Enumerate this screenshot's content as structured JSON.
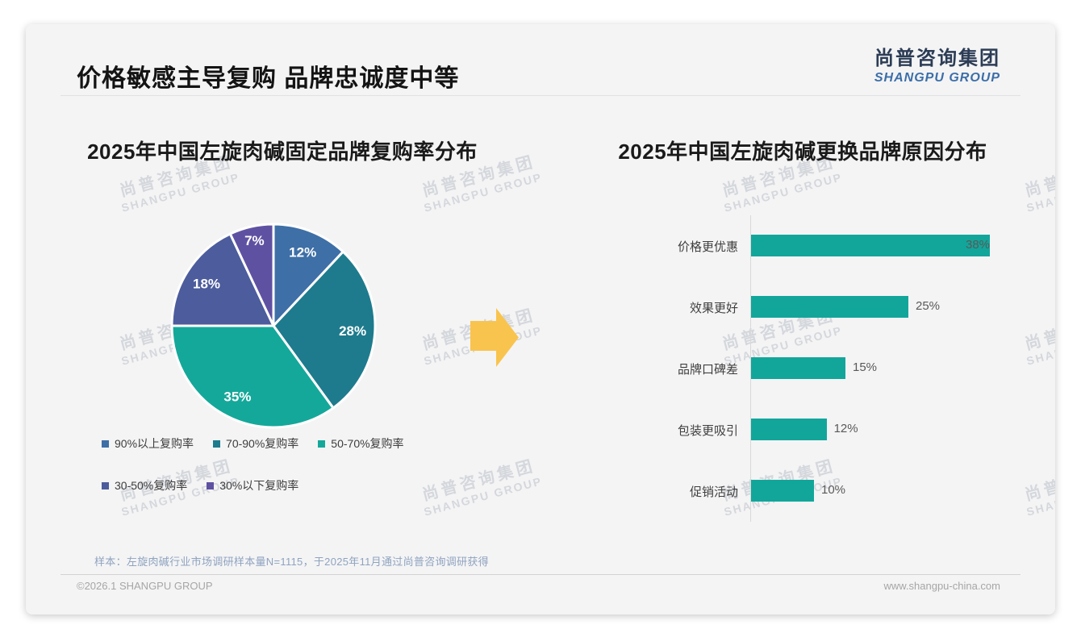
{
  "slide": {
    "title": "价格敏感主导复购 品牌忠诚度中等",
    "logo": {
      "cn": "尚普咨询集团",
      "en": "SHANGPU GROUP"
    },
    "watermark": {
      "line1": "尚普咨询集团",
      "line2": "SHANGPU GROUP"
    },
    "note": "样本：左旋肉碱行业市场调研样本量N=1115，于2025年11月通过尚普咨询调研获得",
    "footer_left": "©2026.1 SHANGPU GROUP",
    "footer_right": "www.shangpu-china.com"
  },
  "colors": {
    "teal_accent": "#12a69b",
    "arrow_yellow": "#f9c44e",
    "logo_navy": "#2c3c55",
    "logo_blue": "#3b6ea8"
  },
  "chart_data": [
    {
      "type": "pie",
      "title": "2025年中国左旋肉碱固定品牌复购率分布",
      "labels": [
        "90%以上复购率",
        "70-90%复购率",
        "50-70%复购率",
        "30-50%复购率",
        "30%以下复购率"
      ],
      "values": [
        12,
        28,
        35,
        18,
        7
      ],
      "data_labels": [
        "12%",
        "28%",
        "35%",
        "18%",
        "7%"
      ],
      "colors": [
        "#3e6fa6",
        "#1e7b8d",
        "#14a89a",
        "#4c5c9c",
        "#5f51a2"
      ],
      "start_angle_deg": 0,
      "direction": "clockwise",
      "legend_position": "bottom"
    },
    {
      "type": "bar",
      "orientation": "horizontal",
      "title": "2025年中国左旋肉碱更换品牌原因分布",
      "categories": [
        "价格更优惠",
        "效果更好",
        "品牌口碑差",
        "包装更吸引",
        "促销活动"
      ],
      "values": [
        38,
        25,
        15,
        12,
        10
      ],
      "data_labels": [
        "38%",
        "25%",
        "15%",
        "12%",
        "10%"
      ],
      "bar_color": "#12a69b",
      "xlim": [
        0,
        40
      ],
      "grid": false,
      "legend_position": "none"
    }
  ]
}
